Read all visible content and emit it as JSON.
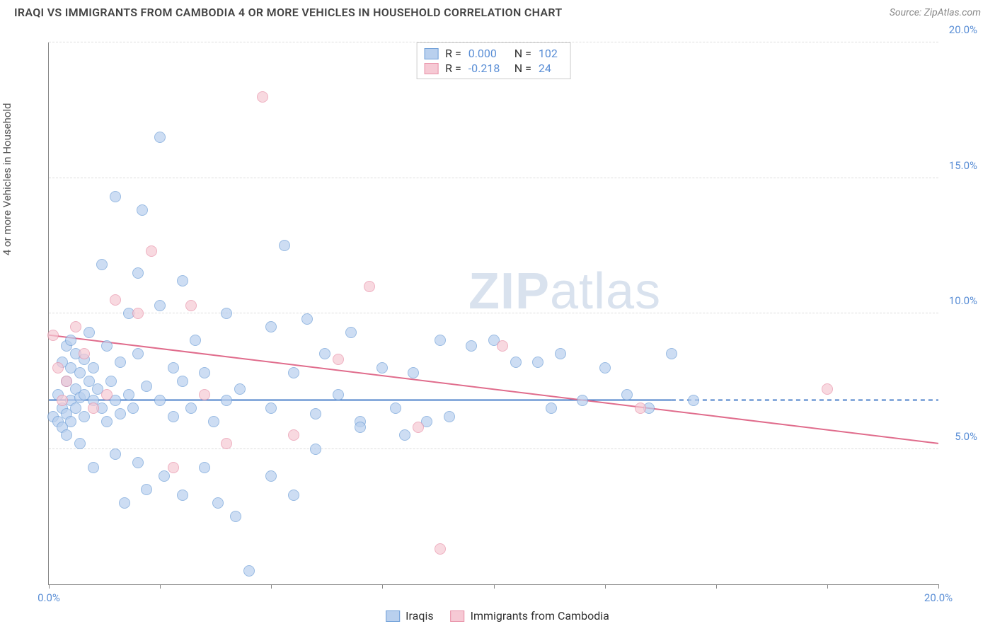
{
  "header": {
    "title": "IRAQI VS IMMIGRANTS FROM CAMBODIA 4 OR MORE VEHICLES IN HOUSEHOLD CORRELATION CHART",
    "source": "Source: ZipAtlas.com"
  },
  "chart": {
    "type": "scatter",
    "y_axis_label": "4 or more Vehicles in Household",
    "xlim": [
      0,
      20
    ],
    "ylim": [
      0,
      20
    ],
    "x_ticks": [
      0,
      2.5,
      5,
      7.5,
      10,
      12.5,
      15,
      17.5,
      20
    ],
    "x_tick_labels": {
      "0": "0.0%",
      "20": "20.0%"
    },
    "y_gridlines": [
      5,
      10,
      15,
      20
    ],
    "y_tick_labels": {
      "5": "5.0%",
      "10": "10.0%",
      "15": "15.0%",
      "20": "20.0%"
    },
    "grid_color": "#dddddd",
    "axis_color": "#888888",
    "background_color": "#ffffff",
    "tick_label_color": "#5b8fd6",
    "watermark": "ZIPatlas"
  },
  "series": [
    {
      "name": "Iraqis",
      "marker_fill": "#b9d0ee",
      "marker_stroke": "#6f9fd8",
      "marker_size": 16,
      "marker_opacity": 0.7,
      "R": "0.000",
      "N": "102",
      "trend": {
        "y_at_x0": 6.8,
        "y_at_x20": 6.8,
        "color": "#4a7fc9",
        "width": 2,
        "solid_until_x": 14.0
      },
      "points": [
        [
          0.1,
          6.2
        ],
        [
          0.2,
          7.0
        ],
        [
          0.2,
          6.0
        ],
        [
          0.3,
          8.2
        ],
        [
          0.3,
          6.5
        ],
        [
          0.3,
          5.8
        ],
        [
          0.4,
          8.8
        ],
        [
          0.4,
          7.5
        ],
        [
          0.4,
          6.3
        ],
        [
          0.4,
          5.5
        ],
        [
          0.5,
          9.0
        ],
        [
          0.5,
          8.0
        ],
        [
          0.5,
          6.8
        ],
        [
          0.5,
          6.0
        ],
        [
          0.6,
          7.2
        ],
        [
          0.6,
          6.5
        ],
        [
          0.6,
          8.5
        ],
        [
          0.7,
          7.8
        ],
        [
          0.7,
          6.9
        ],
        [
          0.7,
          5.2
        ],
        [
          0.8,
          8.3
        ],
        [
          0.8,
          7.0
        ],
        [
          0.8,
          6.2
        ],
        [
          0.9,
          9.3
        ],
        [
          0.9,
          7.5
        ],
        [
          1.0,
          6.8
        ],
        [
          1.0,
          8.0
        ],
        [
          1.0,
          4.3
        ],
        [
          1.1,
          7.2
        ],
        [
          1.2,
          6.5
        ],
        [
          1.2,
          11.8
        ],
        [
          1.3,
          8.8
        ],
        [
          1.3,
          6.0
        ],
        [
          1.4,
          7.5
        ],
        [
          1.5,
          14.3
        ],
        [
          1.5,
          6.8
        ],
        [
          1.5,
          4.8
        ],
        [
          1.6,
          8.2
        ],
        [
          1.6,
          6.3
        ],
        [
          1.7,
          3.0
        ],
        [
          1.8,
          10.0
        ],
        [
          1.8,
          7.0
        ],
        [
          1.9,
          6.5
        ],
        [
          2.0,
          11.5
        ],
        [
          2.0,
          8.5
        ],
        [
          2.0,
          4.5
        ],
        [
          2.1,
          13.8
        ],
        [
          2.2,
          7.3
        ],
        [
          2.2,
          3.5
        ],
        [
          2.5,
          16.5
        ],
        [
          2.5,
          10.3
        ],
        [
          2.5,
          6.8
        ],
        [
          2.6,
          4.0
        ],
        [
          2.8,
          8.0
        ],
        [
          2.8,
          6.2
        ],
        [
          3.0,
          11.2
        ],
        [
          3.0,
          7.5
        ],
        [
          3.0,
          3.3
        ],
        [
          3.2,
          6.5
        ],
        [
          3.3,
          9.0
        ],
        [
          3.5,
          7.8
        ],
        [
          3.5,
          4.3
        ],
        [
          3.7,
          6.0
        ],
        [
          3.8,
          3.0
        ],
        [
          4.0,
          10.0
        ],
        [
          4.0,
          6.8
        ],
        [
          4.2,
          2.5
        ],
        [
          4.3,
          7.2
        ],
        [
          4.5,
          0.5
        ],
        [
          5.0,
          9.5
        ],
        [
          5.0,
          6.5
        ],
        [
          5.0,
          4.0
        ],
        [
          5.3,
          12.5
        ],
        [
          5.5,
          7.8
        ],
        [
          5.5,
          3.3
        ],
        [
          5.8,
          9.8
        ],
        [
          6.0,
          6.3
        ],
        [
          6.0,
          5.0
        ],
        [
          6.2,
          8.5
        ],
        [
          6.5,
          7.0
        ],
        [
          6.8,
          9.3
        ],
        [
          7.0,
          6.0
        ],
        [
          7.0,
          5.8
        ],
        [
          7.5,
          8.0
        ],
        [
          7.8,
          6.5
        ],
        [
          8.0,
          5.5
        ],
        [
          8.2,
          7.8
        ],
        [
          8.5,
          6.0
        ],
        [
          8.8,
          9.0
        ],
        [
          9.0,
          6.2
        ],
        [
          9.5,
          8.8
        ],
        [
          10.0,
          9.0
        ],
        [
          10.5,
          8.2
        ],
        [
          11.0,
          8.2
        ],
        [
          11.3,
          6.5
        ],
        [
          11.5,
          8.5
        ],
        [
          12.0,
          6.8
        ],
        [
          12.5,
          8.0
        ],
        [
          13.0,
          7.0
        ],
        [
          13.5,
          6.5
        ],
        [
          14.0,
          8.5
        ],
        [
          14.5,
          6.8
        ]
      ]
    },
    {
      "name": "Immigrants from Cambodia",
      "marker_fill": "#f6c9d4",
      "marker_stroke": "#e891a8",
      "marker_size": 16,
      "marker_opacity": 0.7,
      "R": "-0.218",
      "N": "24",
      "trend": {
        "y_at_x0": 9.2,
        "y_at_x20": 5.2,
        "color": "#e06c8c",
        "width": 2,
        "solid_until_x": 20.0
      },
      "points": [
        [
          0.1,
          9.2
        ],
        [
          0.2,
          8.0
        ],
        [
          0.3,
          6.8
        ],
        [
          0.4,
          7.5
        ],
        [
          0.6,
          9.5
        ],
        [
          0.8,
          8.5
        ],
        [
          1.0,
          6.5
        ],
        [
          1.3,
          7.0
        ],
        [
          1.5,
          10.5
        ],
        [
          2.0,
          10.0
        ],
        [
          2.3,
          12.3
        ],
        [
          2.8,
          4.3
        ],
        [
          3.2,
          10.3
        ],
        [
          3.5,
          7.0
        ],
        [
          4.0,
          5.2
        ],
        [
          4.8,
          18.0
        ],
        [
          5.5,
          5.5
        ],
        [
          6.5,
          8.3
        ],
        [
          7.2,
          11.0
        ],
        [
          8.3,
          5.8
        ],
        [
          8.8,
          1.3
        ],
        [
          10.2,
          8.8
        ],
        [
          13.3,
          6.5
        ],
        [
          17.5,
          7.2
        ]
      ]
    }
  ],
  "stats_box": {
    "rows": [
      {
        "swatch_fill": "#b9d0ee",
        "swatch_stroke": "#6f9fd8",
        "r_label": "R =",
        "r_val": "0.000",
        "n_label": "N =",
        "n_val": "102"
      },
      {
        "swatch_fill": "#f6c9d4",
        "swatch_stroke": "#e891a8",
        "r_label": "R =",
        "r_val": "-0.218",
        "n_label": "N =",
        "n_val": "24"
      }
    ]
  },
  "bottom_legend": [
    {
      "swatch_fill": "#b9d0ee",
      "swatch_stroke": "#6f9fd8",
      "label": "Iraqis"
    },
    {
      "swatch_fill": "#f6c9d4",
      "swatch_stroke": "#e891a8",
      "label": "Immigrants from Cambodia"
    }
  ]
}
